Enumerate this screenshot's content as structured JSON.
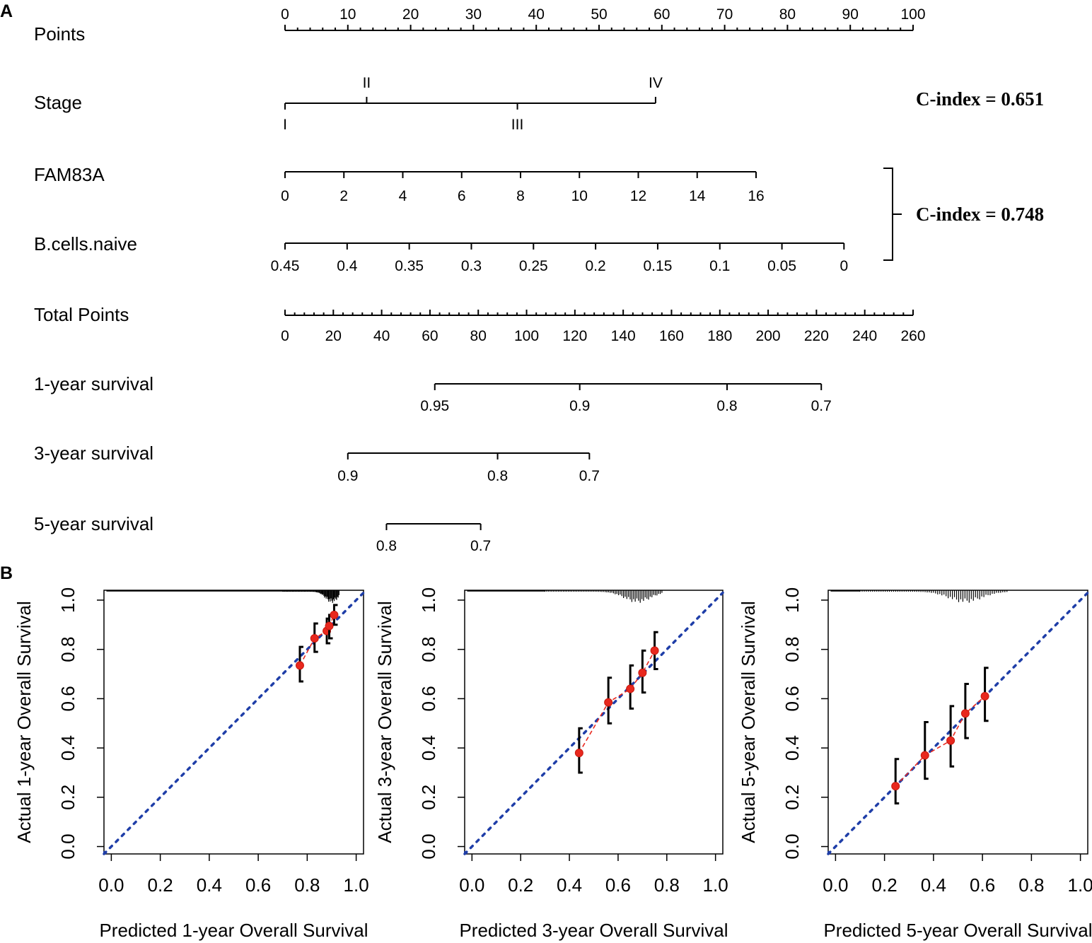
{
  "panel_labels": {
    "a": "A",
    "b": "B"
  },
  "chart_data": [
    {
      "type": "nomogram",
      "panel": "A",
      "c_index_stage": "C-index = 0.651",
      "c_index_combined": "C-index = 0.748",
      "rows": [
        {
          "key": "points",
          "label": "Points",
          "scale": [
            0,
            100
          ],
          "ticks": [
            "0",
            "10",
            "20",
            "30",
            "40",
            "50",
            "60",
            "70",
            "80",
            "90",
            "100"
          ],
          "tick_values": [
            0,
            10,
            20,
            30,
            40,
            50,
            60,
            70,
            80,
            90,
            100
          ],
          "minor_step": 2
        },
        {
          "key": "stage",
          "label": "Stage",
          "scale": [
            0,
            100
          ],
          "ticks_above": [
            "II",
            "IV"
          ],
          "ticks_above_points": [
            13,
            59
          ],
          "ticks_below": [
            "I",
            "III"
          ],
          "ticks_below_points": [
            0,
            37
          ]
        },
        {
          "key": "fam83a",
          "label": "FAM83A",
          "scale": [
            0,
            100
          ],
          "ticks": [
            "0",
            "2",
            "4",
            "6",
            "8",
            "10",
            "12",
            "14",
            "16"
          ],
          "tick_points": [
            0,
            9.375,
            18.75,
            28.125,
            37.5,
            46.875,
            56.25,
            65.625,
            75
          ]
        },
        {
          "key": "bcells",
          "label": "B.cells.naive",
          "scale": [
            0,
            100
          ],
          "ticks": [
            "0.45",
            "0.4",
            "0.35",
            "0.3",
            "0.25",
            "0.2",
            "0.15",
            "0.1",
            "0.05",
            "0"
          ],
          "tick_points": [
            0,
            9.89,
            19.78,
            29.67,
            39.56,
            49.45,
            59.34,
            69.23,
            79.12,
            89
          ]
        },
        {
          "key": "total",
          "label": "Total Points",
          "scale": [
            0,
            260
          ],
          "ticks": [
            "0",
            "20",
            "40",
            "60",
            "80",
            "100",
            "120",
            "140",
            "160",
            "180",
            "200",
            "220",
            "240",
            "260"
          ],
          "tick_values": [
            0,
            20,
            40,
            60,
            80,
            100,
            120,
            140,
            160,
            180,
            200,
            220,
            240,
            260
          ],
          "minor_step": 4
        },
        {
          "key": "y1",
          "label": "1-year survival",
          "scale": [
            0,
            260
          ],
          "ticks": [
            "0.95",
            "0.9",
            "0.8",
            "0.7"
          ],
          "tick_total_points": [
            62,
            122,
            183,
            222
          ]
        },
        {
          "key": "y3",
          "label": "3-year survival",
          "scale": [
            0,
            260
          ],
          "ticks": [
            "0.9",
            "0.8",
            "0.7"
          ],
          "tick_total_points": [
            26,
            88,
            126
          ]
        },
        {
          "key": "y5",
          "label": "5-year survival",
          "scale": [
            0,
            260
          ],
          "ticks": [
            "0.8",
            "0.7"
          ],
          "tick_total_points": [
            42,
            81
          ]
        }
      ]
    },
    {
      "type": "scatter",
      "panel": "B",
      "xlabel": "Predicted 1-year Overall Survival",
      "ylabel": "Actual 1-year Overall Survival",
      "xlim": [
        -0.03,
        1.03
      ],
      "ylim": [
        -0.03,
        1.04
      ],
      "ticks": [
        "0.0",
        "0.2",
        "0.4",
        "0.6",
        "0.8",
        "1.0"
      ],
      "tick_values": [
        0,
        0.2,
        0.4,
        0.6,
        0.8,
        1.0
      ],
      "points": [
        {
          "x": 0.77,
          "y": 0.735,
          "lo": 0.67,
          "hi": 0.81
        },
        {
          "x": 0.83,
          "y": 0.845,
          "lo": 0.79,
          "hi": 0.905
        },
        {
          "x": 0.88,
          "y": 0.875,
          "lo": 0.825,
          "hi": 0.925
        },
        {
          "x": 0.89,
          "y": 0.895,
          "lo": 0.845,
          "hi": 0.94
        },
        {
          "x": 0.91,
          "y": 0.94,
          "lo": 0.9,
          "hi": 0.98
        }
      ],
      "rug_range": [
        0.7,
        0.93
      ],
      "rug_peak": 0.9
    },
    {
      "type": "scatter",
      "panel": "B",
      "xlabel": "Predicted 3-year Overall Survival",
      "ylabel": "Actual 3-year Overall Survival",
      "xlim": [
        -0.03,
        1.03
      ],
      "ylim": [
        -0.03,
        1.04
      ],
      "ticks": [
        "0.0",
        "0.2",
        "0.4",
        "0.6",
        "0.8",
        "1.0"
      ],
      "tick_values": [
        0,
        0.2,
        0.4,
        0.6,
        0.8,
        1.0
      ],
      "points": [
        {
          "x": 0.44,
          "y": 0.38,
          "lo": 0.3,
          "hi": 0.48
        },
        {
          "x": 0.56,
          "y": 0.585,
          "lo": 0.5,
          "hi": 0.685
        },
        {
          "x": 0.65,
          "y": 0.64,
          "lo": 0.56,
          "hi": 0.735
        },
        {
          "x": 0.7,
          "y": 0.705,
          "lo": 0.625,
          "hi": 0.795
        },
        {
          "x": 0.75,
          "y": 0.795,
          "lo": 0.72,
          "hi": 0.87
        }
      ],
      "rug_range": [
        0.3,
        0.78
      ],
      "rug_peak": 0.68
    },
    {
      "type": "scatter",
      "panel": "B",
      "xlabel": "Predicted 5-year Overall Survival",
      "ylabel": "Actual 5-year Overall Survival",
      "xlim": [
        -0.03,
        1.03
      ],
      "ylim": [
        -0.03,
        1.04
      ],
      "ticks": [
        "0.0",
        "0.2",
        "0.4",
        "0.6",
        "0.8",
        "1.0"
      ],
      "tick_values": [
        0,
        0.2,
        0.4,
        0.6,
        0.8,
        1.0
      ],
      "points": [
        {
          "x": 0.245,
          "y": 0.245,
          "lo": 0.175,
          "hi": 0.355
        },
        {
          "x": 0.365,
          "y": 0.37,
          "lo": 0.275,
          "hi": 0.505
        },
        {
          "x": 0.47,
          "y": 0.43,
          "lo": 0.325,
          "hi": 0.57
        },
        {
          "x": 0.53,
          "y": 0.54,
          "lo": 0.44,
          "hi": 0.66
        },
        {
          "x": 0.61,
          "y": 0.61,
          "lo": 0.51,
          "hi": 0.725
        }
      ],
      "rug_range": [
        0.1,
        0.7
      ],
      "rug_peak": 0.53
    }
  ]
}
